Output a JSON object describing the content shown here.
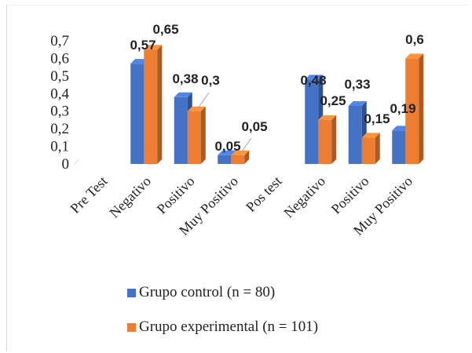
{
  "colors": {
    "control": "#4472c4",
    "experimental": "#ed7d31"
  },
  "chart_data": {
    "type": "bar",
    "categories": [
      "Pre Test",
      "Negativo",
      "Positivo",
      "Muy Positivo",
      "Pos test",
      "Negativo",
      "Positivo",
      "Muy Positivo"
    ],
    "series": [
      {
        "name": "Grupo control (n = 80)",
        "values": [
          null,
          0.57,
          0.38,
          0.05,
          null,
          0.48,
          0.33,
          0.19
        ],
        "labels": [
          "",
          "0,57",
          "0,38",
          "0,05",
          "",
          "0,48",
          "0,33",
          "0,19"
        ]
      },
      {
        "name": "Grupo experimental (n = 101)",
        "values": [
          null,
          0.65,
          0.3,
          0.05,
          null,
          0.25,
          0.15,
          0.6
        ],
        "labels": [
          "",
          "0,65",
          "0,3",
          "0,05",
          "",
          "0,25",
          "0,15",
          "0,6"
        ]
      }
    ],
    "ylim": [
      0,
      0.7
    ],
    "yticks": [
      "0",
      "0,1",
      "0,2",
      "0,3",
      "0,4",
      "0,5",
      "0,6",
      "0,7"
    ],
    "legend_position": "bottom",
    "grid": false,
    "style": "3d-column"
  },
  "legend": {
    "control_label": "Grupo control (n = 80)",
    "experimental_label": "Grupo experimental (n = 101)"
  }
}
